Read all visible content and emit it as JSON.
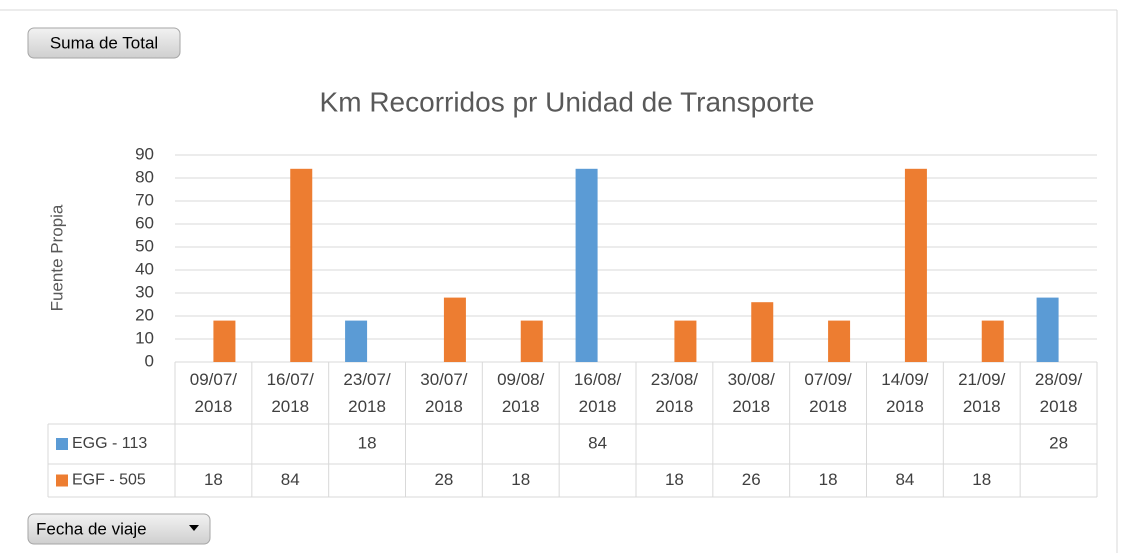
{
  "chart_data": {
    "type": "bar",
    "title": "Km Recorridos pr Unidad de Transporte",
    "ylabel": "Fuente Propia",
    "value_field": "Suma de Total",
    "axis_field": "Fecha de viaje",
    "categories": [
      "09/07/2018",
      "16/07/2018",
      "23/07/2018",
      "30/07/2018",
      "09/08/2018",
      "16/08/2018",
      "23/08/2018",
      "30/08/2018",
      "07/09/2018",
      "14/09/2018",
      "21/09/2018",
      "28/09/2018"
    ],
    "series": [
      {
        "name": "EGG - 113",
        "color": "#5b9bd5",
        "values": [
          null,
          null,
          18,
          null,
          null,
          84,
          null,
          null,
          null,
          null,
          null,
          28
        ]
      },
      {
        "name": "EGF - 505",
        "color": "#ed7d31",
        "values": [
          18,
          84,
          null,
          28,
          18,
          null,
          18,
          26,
          18,
          84,
          18,
          null
        ]
      }
    ],
    "ylim": [
      0,
      90
    ],
    "yticks": [
      0,
      10,
      20,
      30,
      40,
      50,
      60,
      70,
      80,
      90
    ],
    "grid": true
  }
}
